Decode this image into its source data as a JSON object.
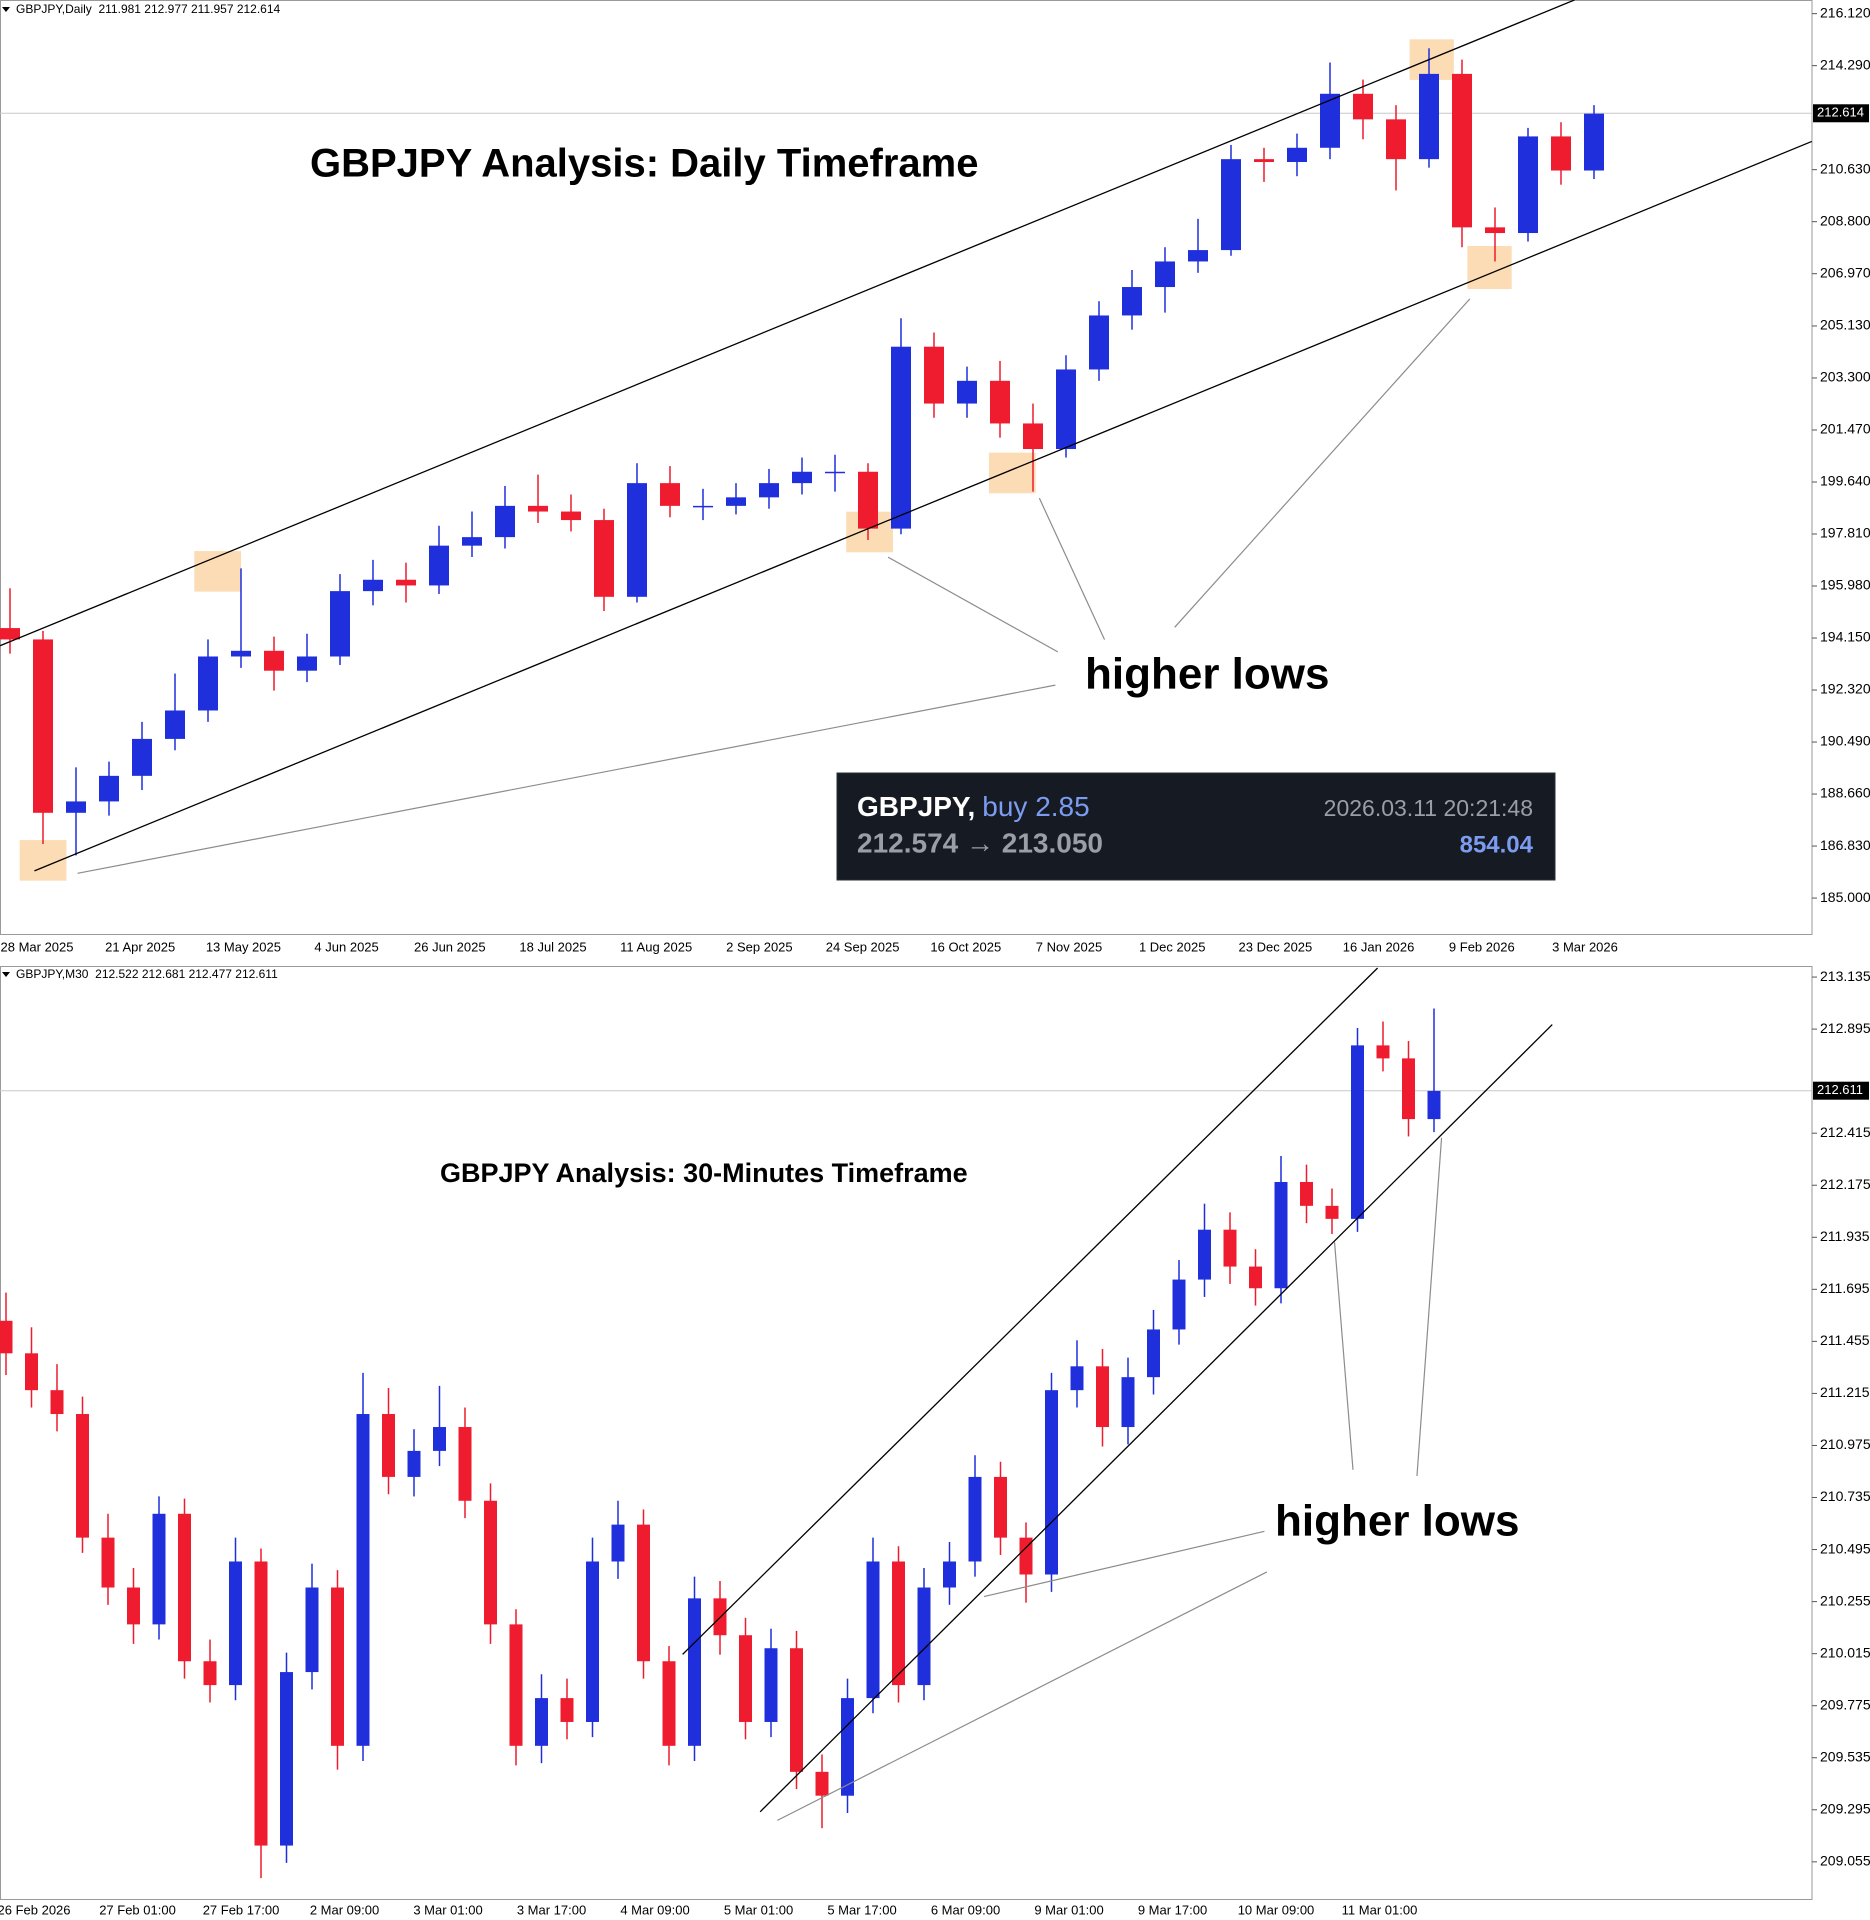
{
  "chart_data": [
    {
      "type": "candlestick",
      "header": "GBPJPY,Daily  211.981 212.977 211.957 212.614",
      "title": "GBPJPY Analysis: Daily Timeframe",
      "annotation": "higher lows",
      "categories": [
        "28 Mar 2025",
        "21 Apr 2025",
        "13 May 2025",
        "4 Jun 2025",
        "26 Jun 2025",
        "18 Jul 2025",
        "11 Aug 2025",
        "2 Sep 2025",
        "24 Sep 2025",
        "16 Oct 2025",
        "7 Nov 2025",
        "1 Dec 2025",
        "23 Dec 2025",
        "16 Jan 2026",
        "9 Feb 2026",
        "3 Mar 2026"
      ],
      "ohlc": [
        [
          194.5,
          195.9,
          193.6,
          194.1
        ],
        [
          194.1,
          194.4,
          186.9,
          188.0
        ],
        [
          188.0,
          189.6,
          186.5,
          188.4
        ],
        [
          188.4,
          189.8,
          187.9,
          189.3
        ],
        [
          189.3,
          191.2,
          188.8,
          190.6
        ],
        [
          190.6,
          192.9,
          190.2,
          191.6
        ],
        [
          191.6,
          194.1,
          191.2,
          193.5
        ],
        [
          193.5,
          196.6,
          193.1,
          193.7
        ],
        [
          193.7,
          194.2,
          192.3,
          193.0
        ],
        [
          193.0,
          194.3,
          192.6,
          193.5
        ],
        [
          193.5,
          196.4,
          193.2,
          195.8
        ],
        [
          195.8,
          196.9,
          195.3,
          196.2
        ],
        [
          196.2,
          196.8,
          195.4,
          196.0
        ],
        [
          196.0,
          198.1,
          195.7,
          197.4
        ],
        [
          197.4,
          198.6,
          197.0,
          197.7
        ],
        [
          197.7,
          199.5,
          197.3,
          198.8
        ],
        [
          198.8,
          199.9,
          198.2,
          198.6
        ],
        [
          198.6,
          199.2,
          197.9,
          198.3
        ],
        [
          198.3,
          198.7,
          195.1,
          195.6
        ],
        [
          195.6,
          200.3,
          195.4,
          199.6
        ],
        [
          199.6,
          200.2,
          198.4,
          198.8
        ],
        [
          198.8,
          199.4,
          198.3,
          198.8
        ],
        [
          198.8,
          199.6,
          198.5,
          199.1
        ],
        [
          199.1,
          200.1,
          198.7,
          199.6
        ],
        [
          199.6,
          200.5,
          199.2,
          200.0
        ],
        [
          200.0,
          200.6,
          199.3,
          200.0
        ],
        [
          200.0,
          200.3,
          197.6,
          198.0
        ],
        [
          198.0,
          205.4,
          197.8,
          204.4
        ],
        [
          204.4,
          204.9,
          201.9,
          202.4
        ],
        [
          202.4,
          203.7,
          201.9,
          203.2
        ],
        [
          203.2,
          203.9,
          201.2,
          201.7
        ],
        [
          201.7,
          202.4,
          199.3,
          200.8
        ],
        [
          200.8,
          204.1,
          200.5,
          203.6
        ],
        [
          203.6,
          206.0,
          203.2,
          205.5
        ],
        [
          205.5,
          207.1,
          205.0,
          206.5
        ],
        [
          206.5,
          207.9,
          205.6,
          207.4
        ],
        [
          207.4,
          208.9,
          207.0,
          207.8
        ],
        [
          207.8,
          211.5,
          207.6,
          211.0
        ],
        [
          211.0,
          211.4,
          210.2,
          210.9
        ],
        [
          210.9,
          211.9,
          210.4,
          211.4
        ],
        [
          211.4,
          214.4,
          211.0,
          213.3
        ],
        [
          213.3,
          213.8,
          211.7,
          212.4
        ],
        [
          212.4,
          212.9,
          209.9,
          211.0
        ],
        [
          211.0,
          214.9,
          210.7,
          214.0
        ],
        [
          214.0,
          214.5,
          207.9,
          208.6
        ],
        [
          208.6,
          209.3,
          207.4,
          208.4
        ],
        [
          208.4,
          212.1,
          208.1,
          211.8
        ],
        [
          211.8,
          212.3,
          210.1,
          210.6
        ],
        [
          210.6,
          212.9,
          210.3,
          212.6
        ]
      ],
      "up_color": "#1f2fdc",
      "down_color": "#ee1c2e",
      "ylim": [
        183.7,
        216.6
      ],
      "yticks": [
        {
          "value": 216.12,
          "label": "216.120"
        },
        {
          "value": 214.29,
          "label": "214.290"
        },
        {
          "value": 210.63,
          "label": "210.630"
        },
        {
          "value": 208.8,
          "label": "208.800"
        },
        {
          "value": 206.97,
          "label": "206.970"
        },
        {
          "value": 205.13,
          "label": "205.130"
        },
        {
          "value": 203.3,
          "label": "203.300"
        },
        {
          "value": 201.47,
          "label": "201.470"
        },
        {
          "value": 199.64,
          "label": "199.640"
        },
        {
          "value": 197.81,
          "label": "197.810"
        },
        {
          "value": 195.98,
          "label": "195.980"
        },
        {
          "value": 194.15,
          "label": "194.150"
        },
        {
          "value": 192.32,
          "label": "192.320"
        },
        {
          "value": 190.49,
          "label": "190.490"
        },
        {
          "value": 188.66,
          "label": "188.660"
        },
        {
          "value": 186.83,
          "label": "186.830"
        },
        {
          "value": 185.0,
          "label": "185.000"
        }
      ],
      "last_price": 212.614,
      "trade_panel": {
        "symbol": "GBPJPY,",
        "side": "buy 2.85",
        "time": "2026.03.11 20:21:48",
        "prices": "212.574 → 213.050",
        "profit": 854.04
      }
    },
    {
      "type": "candlestick",
      "header": "GBPJPY,M30  212.522 212.681 212.477 212.611",
      "title": "GBPJPY Analysis: 30-Minutes Timeframe",
      "annotation": "higher lows",
      "categories": [
        "26 Feb 2026",
        "27 Feb 01:00",
        "27 Feb 17:00",
        "2 Mar 09:00",
        "3 Mar 01:00",
        "3 Mar 17:00",
        "4 Mar 09:00",
        "5 Mar 01:00",
        "5 Mar 17:00",
        "6 Mar 09:00",
        "9 Mar 01:00",
        "9 Mar 17:00",
        "10 Mar 09:00",
        "11 Mar 01:00"
      ],
      "ohlc": [
        [
          211.55,
          211.68,
          211.3,
          211.4
        ],
        [
          211.4,
          211.52,
          211.15,
          211.23
        ],
        [
          211.23,
          211.35,
          211.04,
          211.12
        ],
        [
          211.12,
          211.2,
          210.48,
          210.55
        ],
        [
          210.55,
          210.66,
          210.24,
          210.32
        ],
        [
          210.32,
          210.41,
          210.06,
          210.15
        ],
        [
          210.15,
          210.74,
          210.08,
          210.66
        ],
        [
          210.66,
          210.73,
          209.9,
          209.98
        ],
        [
          209.98,
          210.08,
          209.79,
          209.87
        ],
        [
          209.87,
          210.55,
          209.8,
          210.44
        ],
        [
          210.44,
          210.5,
          208.98,
          209.13
        ],
        [
          209.13,
          210.02,
          209.05,
          209.93
        ],
        [
          209.93,
          210.43,
          209.85,
          210.32
        ],
        [
          210.32,
          210.4,
          209.48,
          209.59
        ],
        [
          209.59,
          211.31,
          209.52,
          211.12
        ],
        [
          211.12,
          211.24,
          210.75,
          210.83
        ],
        [
          210.83,
          211.05,
          210.74,
          210.95
        ],
        [
          210.95,
          211.25,
          210.88,
          211.06
        ],
        [
          211.06,
          211.15,
          210.64,
          210.72
        ],
        [
          210.72,
          210.8,
          210.06,
          210.15
        ],
        [
          210.15,
          210.22,
          209.5,
          209.59
        ],
        [
          209.59,
          209.92,
          209.51,
          209.81
        ],
        [
          209.81,
          209.9,
          209.62,
          209.7
        ],
        [
          209.7,
          210.55,
          209.63,
          210.44
        ],
        [
          210.44,
          210.72,
          210.36,
          210.61
        ],
        [
          210.61,
          210.68,
          209.9,
          209.98
        ],
        [
          209.98,
          210.05,
          209.5,
          209.59
        ],
        [
          209.59,
          210.37,
          209.52,
          210.27
        ],
        [
          210.27,
          210.35,
          210.01,
          210.1
        ],
        [
          210.1,
          210.18,
          209.62,
          209.7
        ],
        [
          209.7,
          210.13,
          209.63,
          210.04
        ],
        [
          210.04,
          210.12,
          209.39,
          209.47
        ],
        [
          209.47,
          209.55,
          209.21,
          209.36
        ],
        [
          209.36,
          209.9,
          209.28,
          209.81
        ],
        [
          209.81,
          210.55,
          209.74,
          210.44
        ],
        [
          210.44,
          210.51,
          209.79,
          209.87
        ],
        [
          209.87,
          210.41,
          209.8,
          210.32
        ],
        [
          210.32,
          210.53,
          210.24,
          210.44
        ],
        [
          210.44,
          210.93,
          210.37,
          210.83
        ],
        [
          210.83,
          210.9,
          210.47,
          210.55
        ],
        [
          210.55,
          210.62,
          210.25,
          210.38
        ],
        [
          210.38,
          211.31,
          210.3,
          211.23
        ],
        [
          211.23,
          211.46,
          211.15,
          211.34
        ],
        [
          211.34,
          211.42,
          210.97,
          211.06
        ],
        [
          211.06,
          211.38,
          210.98,
          211.29
        ],
        [
          211.29,
          211.6,
          211.21,
          211.51
        ],
        [
          211.51,
          211.83,
          211.44,
          211.74
        ],
        [
          211.74,
          212.09,
          211.66,
          211.97
        ],
        [
          211.97,
          212.05,
          211.72,
          211.8
        ],
        [
          211.8,
          211.88,
          211.62,
          211.7
        ],
        [
          211.7,
          212.31,
          211.63,
          212.19
        ],
        [
          212.19,
          212.27,
          212.0,
          212.08
        ],
        [
          212.08,
          212.16,
          211.95,
          212.02
        ],
        [
          212.02,
          212.9,
          211.96,
          212.82
        ],
        [
          212.82,
          212.93,
          212.7,
          212.76
        ],
        [
          212.76,
          212.84,
          212.4,
          212.48
        ],
        [
          212.48,
          212.99,
          212.42,
          212.61
        ]
      ],
      "up_color": "#1f2fdc",
      "down_color": "#ee1c2e",
      "ylim": [
        208.879,
        213.186
      ],
      "yticks": [
        213.135,
        212.895,
        212.415,
        212.175,
        211.935,
        211.695,
        211.455,
        211.215,
        210.975,
        210.735,
        210.495,
        210.255,
        210.015,
        209.775,
        209.535,
        209.295,
        209.055
      ],
      "last_price": 212.611
    }
  ]
}
